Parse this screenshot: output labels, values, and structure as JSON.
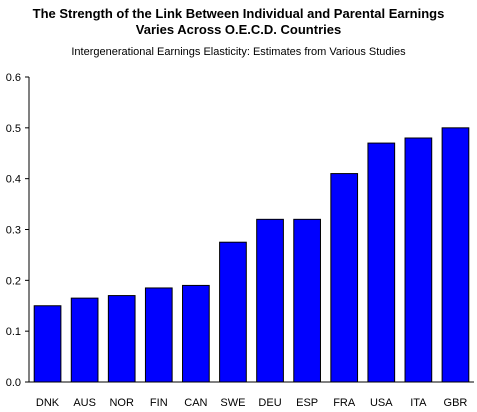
{
  "chart_data": {
    "type": "bar",
    "title": [
      "The Strength of the Link Between Individual and Parental Earnings",
      "Varies Across O.E.C.D. Countries"
    ],
    "subtitle": "Intergenerational Earnings Elasticity: Estimates from Various Studies",
    "xlabel": "",
    "ylabel": "",
    "categories": [
      "DNK",
      "AUS",
      "NOR",
      "FIN",
      "CAN",
      "SWE",
      "DEU",
      "ESP",
      "FRA",
      "USA",
      "ITA",
      "GBR"
    ],
    "values": [
      0.15,
      0.165,
      0.17,
      0.185,
      0.19,
      0.275,
      0.32,
      0.32,
      0.41,
      0.47,
      0.48,
      0.5
    ],
    "ylim": [
      0,
      0.6
    ],
    "yticks": [
      "0.0",
      "0.1",
      "0.2",
      "0.3",
      "0.4",
      "0.5",
      "0.6"
    ],
    "grid": false,
    "legend": "none",
    "bar_color": "#0000ff",
    "bar_edge_color": "#000000"
  }
}
